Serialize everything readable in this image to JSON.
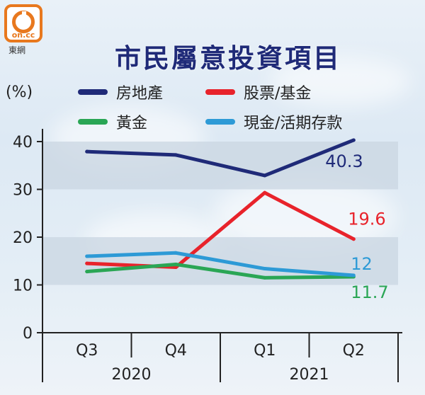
{
  "logo": {
    "mark": "on.cc",
    "sub": "東網"
  },
  "chart_data": {
    "type": "line",
    "title": "市民屬意投資項目",
    "ylabel": "(%)",
    "ylim": [
      0,
      45
    ],
    "yticks": [
      "0",
      "10",
      "20",
      "30",
      "40"
    ],
    "categories": [
      "Q3",
      "Q4",
      "Q1",
      "Q2"
    ],
    "year_labels": [
      "2020",
      "2021"
    ],
    "legend_placement": "top",
    "series": [
      {
        "name": "房地產",
        "color": "#1f2a78",
        "values": [
          37.9,
          37.2,
          32.9,
          40.3
        ],
        "end_label": "40.3"
      },
      {
        "name": "股票/基金",
        "color": "#e8232b",
        "values": [
          14.5,
          13.7,
          29.3,
          19.6
        ],
        "end_label": "19.6"
      },
      {
        "name": "黃金",
        "color": "#2aa655",
        "values": [
          12.8,
          14.3,
          11.5,
          11.7
        ],
        "end_label": "11.7"
      },
      {
        "name": "現金/活期存款",
        "color": "#2d9ad6",
        "values": [
          16.0,
          16.7,
          13.4,
          12.0
        ],
        "end_label": "12"
      }
    ]
  }
}
